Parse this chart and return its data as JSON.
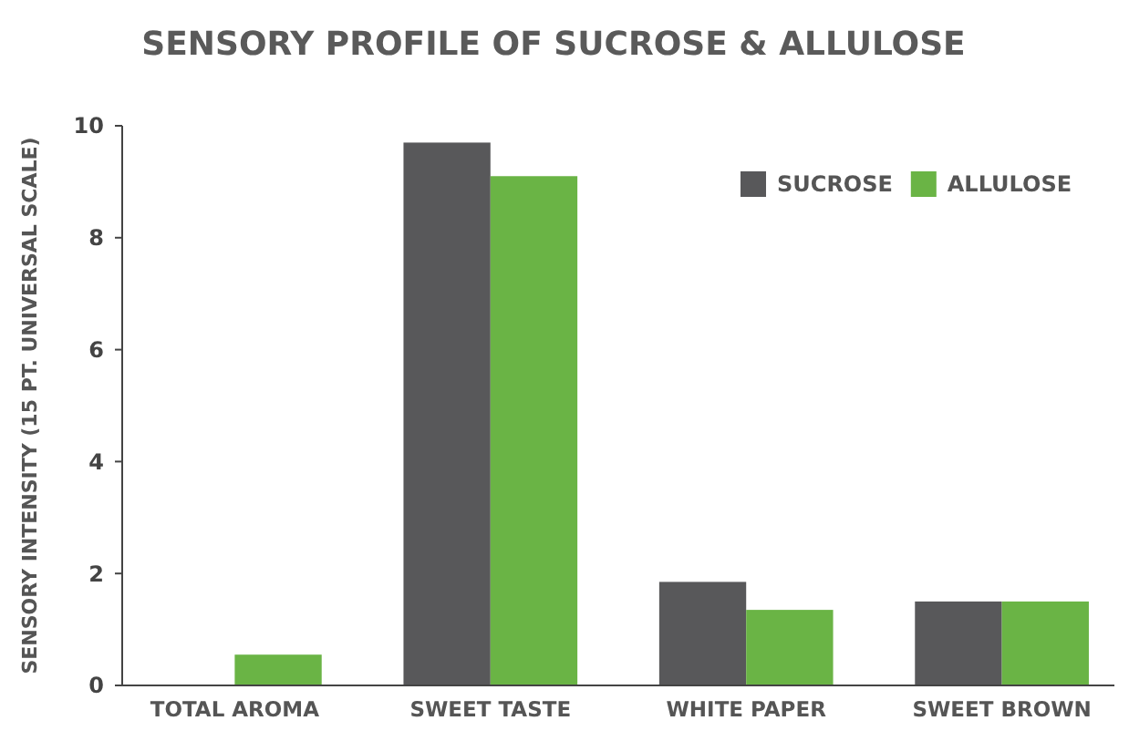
{
  "chart_data": {
    "type": "bar",
    "title": "SENSORY PROFILE OF SUCROSE & ALLULOSE",
    "ylabel": "SENSORY INTENSITY (15 PT. UNIVERSAL SCALE)",
    "categories": [
      "TOTAL AROMA",
      "SWEET TASTE",
      "WHITE PAPER",
      "SWEET BROWN"
    ],
    "series": [
      {
        "name": "SUCROSE",
        "color": "#58585a",
        "values": [
          0,
          9.7,
          1.85,
          1.5
        ]
      },
      {
        "name": "ALLULOSE",
        "color": "#6ab445",
        "values": [
          0.55,
          9.1,
          1.35,
          1.5
        ]
      }
    ],
    "ylim": [
      0,
      10
    ],
    "yticks": [
      0,
      2,
      4,
      6,
      8,
      10
    ],
    "grid": false,
    "legend": "top right"
  }
}
